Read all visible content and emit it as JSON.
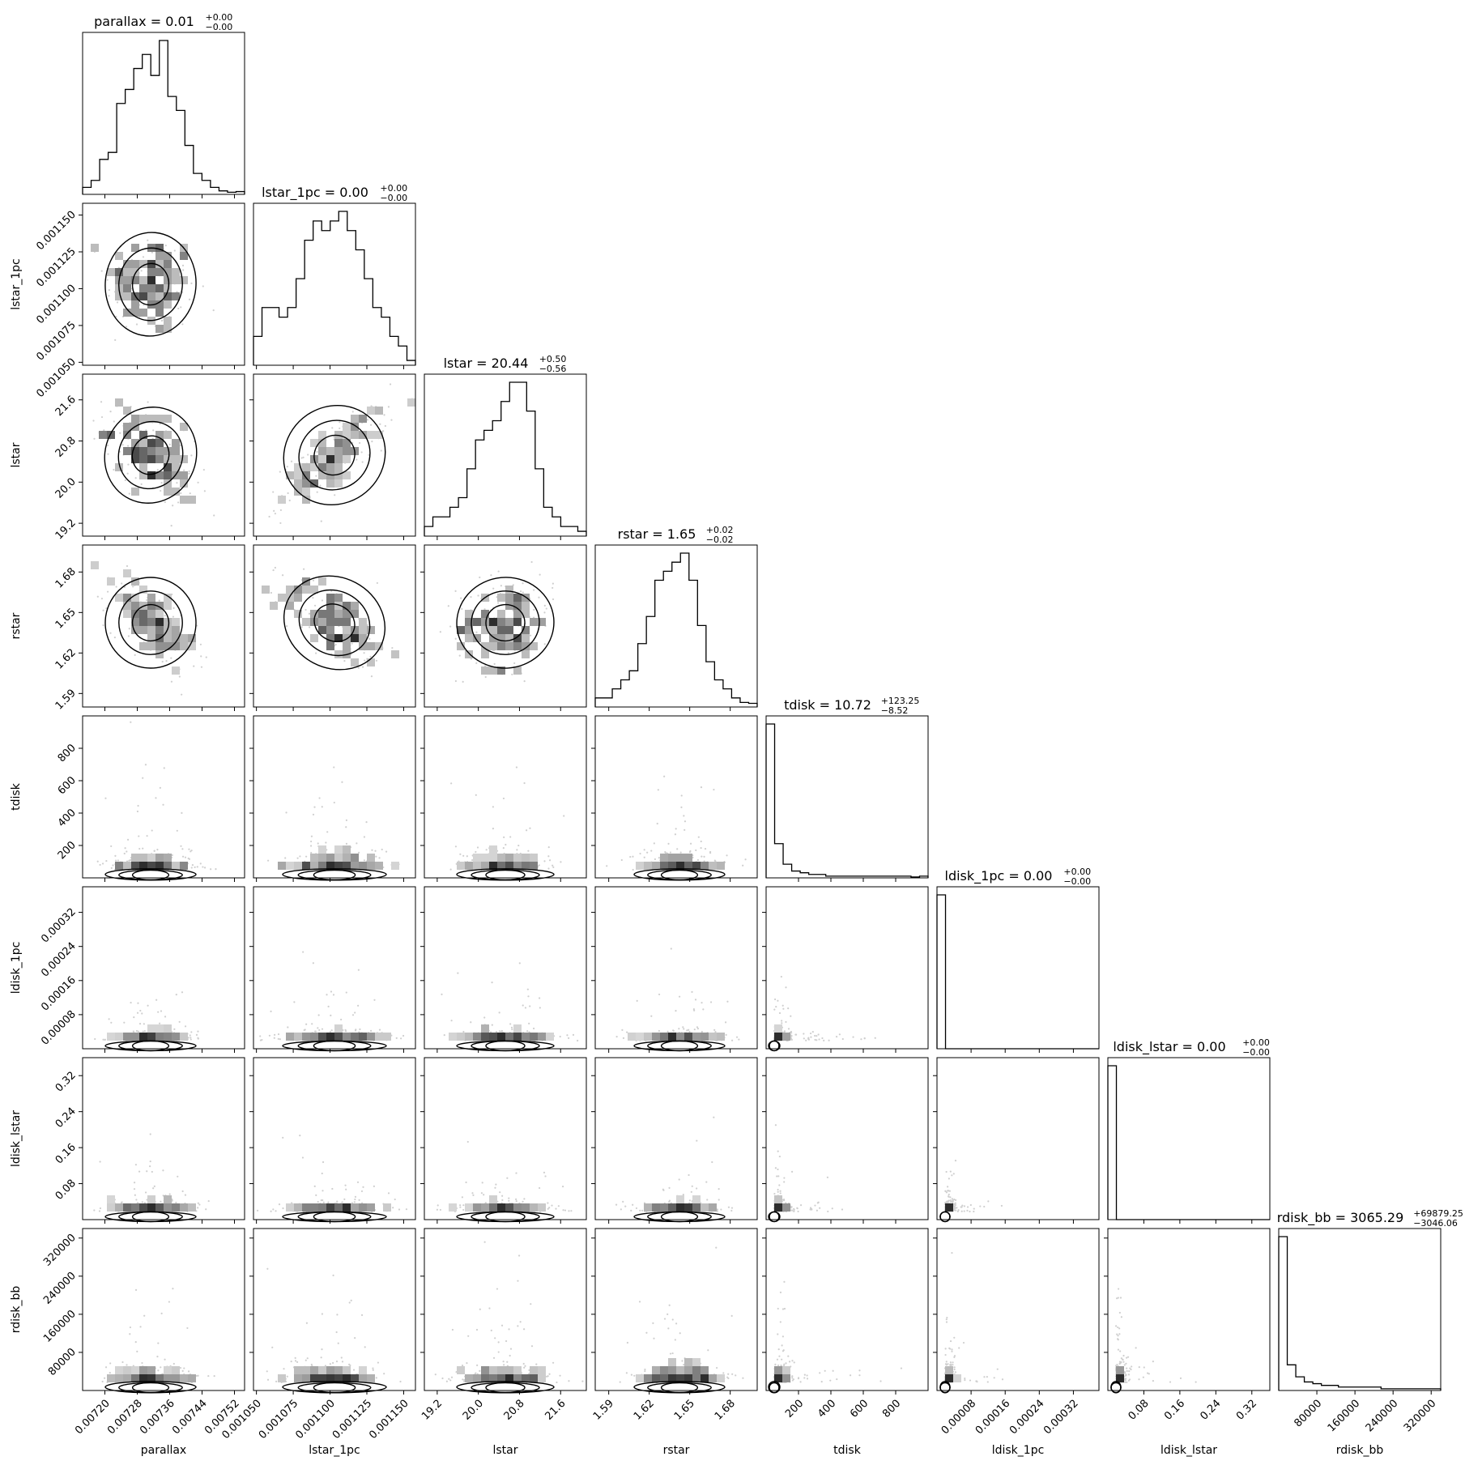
{
  "chart_data": {
    "type": "corner",
    "parameters": [
      "parallax",
      "lstar_1pc",
      "lstar",
      "rstar",
      "tdisk",
      "ldisk_1pc",
      "ldisk_lstar",
      "rdisk_bb"
    ],
    "axis_labels": [
      "parallax",
      "lstar_1pc",
      "lstar",
      "rstar",
      "tdisk",
      "ldisk_1pc",
      "ldisk_lstar",
      "rdisk_bb"
    ],
    "titles": [
      {
        "base": "parallax = 0.01",
        "plus": "+0.00",
        "minus": "−0.00"
      },
      {
        "base": "lstar_1pc = 0.00",
        "plus": "+0.00",
        "minus": "−0.00"
      },
      {
        "base": "lstar = 20.44",
        "plus": "+0.50",
        "minus": "−0.56"
      },
      {
        "base": "rstar = 1.65",
        "plus": "+0.02",
        "minus": "−0.02"
      },
      {
        "base": "tdisk = 10.72",
        "plus": "+123.25",
        "minus": "−8.52"
      },
      {
        "base": "ldisk_1pc = 0.00",
        "plus": "+0.00",
        "minus": "−0.00"
      },
      {
        "base": "ldisk_lstar = 0.00",
        "plus": "+0.00",
        "minus": "−0.00"
      },
      {
        "base": "rdisk_bb = 3065.29",
        "plus": "+69879.25",
        "minus": "−3046.06"
      }
    ],
    "ranges": [
      [
        0.007145,
        0.007545
      ],
      [
        0.001048,
        0.001158
      ],
      [
        18.95,
        22.1
      ],
      [
        1.58,
        1.7
      ],
      [
        0,
        1000
      ],
      [
        0,
        0.00038
      ],
      [
        0,
        0.36
      ],
      [
        0,
        340000
      ]
    ],
    "ticks": [
      [
        "0.00720",
        "0.00728",
        "0.00736",
        "0.00744",
        "0.00752"
      ],
      [
        "0.001050",
        "0.001075",
        "0.001100",
        "0.001125",
        "0.001150"
      ],
      [
        "19.2",
        "20.0",
        "20.8",
        "21.6"
      ],
      [
        "1.59",
        "1.62",
        "1.65",
        "1.68"
      ],
      [
        "200",
        "400",
        "600",
        "800"
      ],
      [
        "0.00008",
        "0.00016",
        "0.00024",
        "0.00032"
      ],
      [
        "0.08",
        "0.16",
        "0.24",
        "0.32"
      ],
      [
        "80000",
        "160000",
        "240000",
        "320000"
      ]
    ],
    "tick_values": [
      [
        0.0072,
        0.00728,
        0.00736,
        0.00744,
        0.00752
      ],
      [
        0.00105,
        0.001075,
        0.0011,
        0.001125,
        0.00115
      ],
      [
        19.2,
        20.0,
        20.8,
        21.6
      ],
      [
        1.59,
        1.62,
        1.65,
        1.68
      ],
      [
        200,
        400,
        600,
        800
      ],
      [
        8e-05,
        0.00016,
        0.00024,
        0.00032
      ],
      [
        0.08,
        0.16,
        0.24,
        0.32
      ],
      [
        80000,
        160000,
        240000,
        320000
      ]
    ],
    "histograms": [
      [
        1,
        2,
        5,
        6,
        13,
        15,
        18,
        20,
        17,
        22,
        14,
        12,
        7,
        3,
        2,
        1,
        0.5,
        0.3,
        0.4
      ],
      [
        3,
        6,
        6,
        5,
        6,
        9,
        13,
        15,
        14,
        15,
        16,
        14,
        12,
        9,
        6,
        5,
        3,
        2,
        0.5
      ],
      [
        1,
        2,
        2,
        3,
        4,
        7,
        10,
        11,
        12,
        14,
        16,
        16,
        13,
        7,
        3,
        2,
        1,
        1,
        0.5
      ],
      [
        1,
        1,
        2,
        3,
        4,
        7,
        10,
        14,
        15,
        16,
        17,
        14,
        9,
        5,
        3,
        2,
        1,
        0.5,
        0.4
      ],
      [
        90,
        20,
        8,
        4,
        3,
        2,
        2,
        1,
        1,
        1,
        1,
        1,
        1,
        1,
        1,
        1,
        1,
        0.5,
        1
      ],
      [
        95,
        0,
        0,
        0,
        0,
        0,
        0,
        0,
        0,
        0,
        0,
        0,
        0,
        0,
        0,
        0,
        0,
        0,
        0
      ],
      [
        95,
        0,
        0,
        0,
        0,
        0,
        0,
        0,
        0,
        0,
        0,
        0,
        0,
        0,
        0,
        0,
        0,
        0,
        0
      ],
      [
        90,
        15,
        8,
        5,
        4,
        3,
        3,
        2,
        2,
        2,
        2,
        2,
        1,
        1,
        1,
        1,
        1,
        1,
        1
      ]
    ],
    "grid": false,
    "legend": "none"
  }
}
